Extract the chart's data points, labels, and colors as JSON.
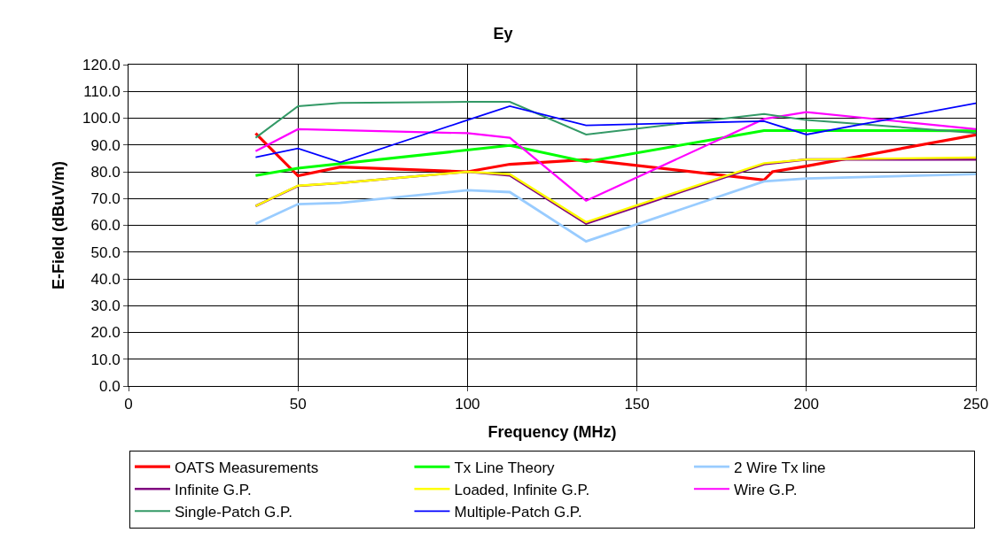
{
  "chart_data": {
    "type": "line",
    "title": "Ey",
    "xlabel": "Frequency (MHz)",
    "ylabel": "E-Field (dBuV/m)",
    "x": [
      37.5,
      50,
      62.5,
      100,
      112.5,
      135,
      187.5,
      200,
      250
    ],
    "xlim": [
      0,
      250
    ],
    "xticks": [
      0,
      50,
      100,
      150,
      200,
      250
    ],
    "ylim": [
      0,
      120
    ],
    "yticks": [
      {
        "value": 0,
        "label": "0.0"
      },
      {
        "value": 10,
        "label": "10.0"
      },
      {
        "value": 20,
        "label": "20.0"
      },
      {
        "value": 30,
        "label": "30.0"
      },
      {
        "value": 40,
        "label": "40.0"
      },
      {
        "value": 50,
        "label": "50.0"
      },
      {
        "value": 60,
        "label": "60.0"
      },
      {
        "value": 70,
        "label": "70.0"
      },
      {
        "value": 80,
        "label": "80.0"
      },
      {
        "value": 90,
        "label": "90.0"
      },
      {
        "value": 100,
        "label": "100.0"
      },
      {
        "value": 110,
        "label": "110.0"
      },
      {
        "value": 120,
        "label": "120.0"
      }
    ],
    "grid": true,
    "legend": "bottom",
    "marker": "none",
    "line_style": "solid",
    "series": [
      {
        "name": "OATS Measurements",
        "color": "#ff0000",
        "x": [
          37.5,
          50,
          62.5,
          100,
          112.5,
          135,
          187.5,
          190,
          200,
          250
        ],
        "values": [
          94.3,
          78.5,
          81.8,
          80.0,
          82.8,
          84.5,
          76.9,
          80.0,
          82.1,
          93.8
        ]
      },
      {
        "name": "Tx Line Theory",
        "color": "#00ff00",
        "x": [
          37.5,
          50,
          112.5,
          135,
          187.5,
          200,
          250
        ],
        "values": [
          78.6,
          81.3,
          89.8,
          83.7,
          95.4,
          95.4,
          95.3
        ]
      },
      {
        "name": "2 Wire Tx line",
        "color": "#99ccff",
        "values": [
          60.6,
          67.9,
          68.4,
          73.1,
          72.4,
          54.0,
          76.4,
          77.5,
          79.1
        ]
      },
      {
        "name": "Infinite G.P.",
        "color": "#800080",
        "values": [
          67.2,
          74.7,
          75.8,
          80.0,
          78.6,
          60.6,
          82.8,
          84.6,
          84.6
        ]
      },
      {
        "name": "Loaded, Infinite G.P.",
        "color": "#ffff00",
        "values": [
          67.2,
          74.8,
          75.8,
          80.0,
          79.1,
          61.2,
          83.2,
          84.6,
          85.3
        ]
      },
      {
        "name": "Wire G.P.",
        "color": "#ff00ff",
        "x": [
          37.5,
          50,
          100,
          112.5,
          135,
          187.5,
          200,
          250
        ],
        "values": [
          87.7,
          95.9,
          94.4,
          92.7,
          69.2,
          99.7,
          102.3,
          95.9
        ]
      },
      {
        "name": "Single-Patch G.P.",
        "color": "#339966",
        "values": [
          92.7,
          104.5,
          105.7,
          106.1,
          106.1,
          93.9,
          101.6,
          99.3,
          94.5
        ]
      },
      {
        "name": "Multiple-Patch G.P.",
        "color": "#0000ff",
        "values": [
          85.4,
          88.7,
          83.5,
          99.3,
          104.5,
          97.3,
          98.9,
          93.9,
          105.6
        ]
      }
    ]
  }
}
